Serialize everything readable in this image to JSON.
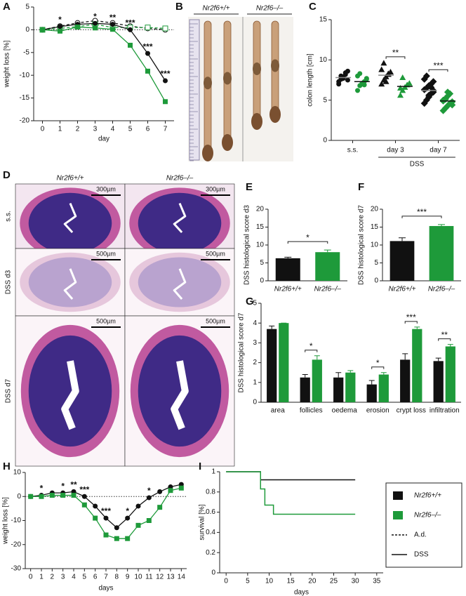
{
  "chart_data": [
    {
      "panel": "A",
      "type": "line",
      "x_label": "day",
      "y_label": "weight loss [%]",
      "x": [
        0,
        1,
        2,
        3,
        4,
        5,
        6,
        7
      ],
      "xlim": [
        -0.5,
        7.5
      ],
      "xticks": [
        0,
        1,
        2,
        3,
        4,
        5,
        6,
        7
      ],
      "ylim": [
        -20,
        5
      ],
      "yticks": [
        -20,
        -15,
        -10,
        -5,
        0,
        5
      ],
      "reference_line": 0,
      "series": [
        {
          "color": "#111111",
          "dashed": true,
          "marker": "circle",
          "values": [
            0,
            0.8,
            1.5,
            2,
            1.5,
            0.8,
            0.3,
            0
          ]
        },
        {
          "color": "#1e9a3a",
          "dashed": true,
          "marker": "square",
          "values": [
            0,
            0.3,
            0.7,
            1.2,
            0.5,
            0.5,
            0.5,
            0.3
          ]
        },
        {
          "color": "#111111",
          "dashed": false,
          "marker": "circle",
          "values": [
            0,
            0.7,
            1.2,
            1.4,
            1.2,
            0,
            -5.2,
            -11.2
          ]
        },
        {
          "color": "#1e9a3a",
          "dashed": false,
          "marker": "square",
          "values": [
            0,
            -0.3,
            0.6,
            0.4,
            0.1,
            -3.4,
            -9.1,
            -15.8
          ]
        }
      ],
      "annotations": [
        {
          "x": 1,
          "text": "*"
        },
        {
          "x": 3,
          "text": "*"
        },
        {
          "x": 4,
          "text": "**"
        },
        {
          "x": 5,
          "text": "***"
        },
        {
          "x": 6,
          "text": "***"
        },
        {
          "x": 7,
          "text": "***"
        }
      ]
    },
    {
      "panel": "B",
      "type": "photo",
      "labels": [
        "Nr2f6+/+",
        "Nr2f6–/–"
      ]
    },
    {
      "panel": "C",
      "type": "dot",
      "y_label": "colon length [cm]",
      "categories": [
        "s.s.",
        "day 3",
        "day 7"
      ],
      "group_label": "DSS",
      "ylim": [
        0,
        15
      ],
      "yticks": [
        0,
        5,
        10,
        15
      ],
      "markers": [
        "circle",
        "triangle",
        "diamond"
      ],
      "series": [
        {
          "color": "#111111",
          "means": [
            7.8,
            8.1,
            6.2
          ],
          "points": [
            [
              7.3,
              7.6,
              7.9,
              8.2,
              8.6,
              7.0,
              8.0,
              7.7,
              8.4,
              7.5
            ],
            [
              7.0,
              7.5,
              7.9,
              8.2,
              8.5,
              8.8,
              9.6,
              7.3,
              8.3
            ],
            [
              4.6,
              5.0,
              5.4,
              5.8,
              6.0,
              6.3,
              6.5,
              6.8,
              7.0,
              7.3,
              7.6,
              8.0,
              5.6,
              6.6,
              6.2
            ]
          ]
        },
        {
          "color": "#1e9a3a",
          "means": [
            7.3,
            6.7,
            4.9
          ],
          "points": [
            [
              6.2,
              6.8,
              7.0,
              7.3,
              7.6,
              8.0,
              8.3,
              7.1,
              6.9,
              7.7
            ],
            [
              5.6,
              6.2,
              6.6,
              6.9,
              7.1,
              6.5,
              7.8
            ],
            [
              3.7,
              4.0,
              4.3,
              4.6,
              4.8,
              5.0,
              5.2,
              5.5,
              5.8,
              4.4,
              4.9,
              5.1,
              6.0
            ]
          ]
        }
      ],
      "significance": [
        null,
        "**",
        "***"
      ]
    },
    {
      "panel": "D",
      "type": "histology",
      "columns": [
        "Nr2f6+/+",
        "Nr2f6–/–"
      ],
      "rows": [
        "s.s.",
        "DSS d3",
        "DSS d7"
      ],
      "scale_bars": [
        "300µm",
        "300µm",
        "500µm",
        "500µm",
        "500µm",
        "500µm"
      ]
    },
    {
      "panel": "E",
      "type": "bar",
      "y_label": "DSS histological score d3",
      "categories": [
        "Nr2f6+/+",
        "Nr2f6–/–"
      ],
      "colors": [
        "#111111",
        "#1e9a3a"
      ],
      "values": [
        6.3,
        8.0
      ],
      "errors": [
        0.3,
        0.6
      ],
      "ylim": [
        0,
        20
      ],
      "yticks": [
        0,
        5,
        10,
        15,
        20
      ],
      "significance": "*"
    },
    {
      "panel": "F",
      "type": "bar",
      "y_label": "DSS histological score d7",
      "categories": [
        "Nr2f6+/+",
        "Nr2f6–/–"
      ],
      "colors": [
        "#111111",
        "#1e9a3a"
      ],
      "values": [
        11.1,
        15.3
      ],
      "errors": [
        0.9,
        0.4
      ],
      "ylim": [
        0,
        20
      ],
      "yticks": [
        0,
        5,
        10,
        15,
        20
      ],
      "significance": "***"
    },
    {
      "panel": "G",
      "type": "grouped_bar",
      "y_label": "DSS histological score d7",
      "categories": [
        "area",
        "follicles",
        "oedema",
        "erosion",
        "crypt loss",
        "infiltration"
      ],
      "ylim": [
        0,
        5
      ],
      "yticks": [
        0,
        1,
        2,
        3,
        4,
        5
      ],
      "series": [
        {
          "color": "#111111",
          "values": [
            3.7,
            1.25,
            1.25,
            0.9,
            2.15,
            2.08
          ],
          "errors": [
            0.15,
            0.15,
            0.25,
            0.2,
            0.3,
            0.15
          ]
        },
        {
          "color": "#1e9a3a",
          "values": [
            4.0,
            2.15,
            1.5,
            1.4,
            3.7,
            2.82
          ],
          "errors": [
            0,
            0.2,
            0.1,
            0.1,
            0.1,
            0.1
          ]
        }
      ],
      "significance": [
        null,
        "*",
        null,
        "*",
        "***",
        "**"
      ]
    },
    {
      "panel": "H",
      "type": "line",
      "x_label": "days",
      "y_label": "weight loss [%]",
      "x": [
        0,
        1,
        2,
        3,
        4,
        5,
        6,
        7,
        8,
        9,
        10,
        11,
        12,
        13,
        14
      ],
      "xlim": [
        -0.5,
        14.5
      ],
      "xticks": [
        0,
        1,
        2,
        3,
        4,
        5,
        6,
        7,
        8,
        9,
        10,
        11,
        12,
        13,
        14
      ],
      "ylim": [
        -30,
        10
      ],
      "yticks": [
        -30,
        -20,
        -10,
        0,
        10
      ],
      "reference_line": 0,
      "series": [
        {
          "color": "#111111",
          "dashed": false,
          "marker": "circle",
          "values": [
            0,
            0.5,
            1.5,
            1.5,
            2,
            0,
            -4,
            -9,
            -13,
            -9,
            -4,
            -0.5,
            2,
            4,
            5
          ]
        },
        {
          "color": "#1e9a3a",
          "dashed": false,
          "marker": "square",
          "values": [
            0,
            0,
            0.5,
            0.5,
            0.5,
            -3.5,
            -9,
            -16,
            -17.5,
            -17.5,
            -12,
            -10,
            -4.5,
            2.5,
            3.5
          ]
        }
      ],
      "annotations": [
        {
          "x": 1,
          "text": "*"
        },
        {
          "x": 3,
          "text": "*"
        },
        {
          "x": 4,
          "text": "**"
        },
        {
          "x": 5,
          "text": "***"
        },
        {
          "x": 7,
          "text": "***"
        },
        {
          "x": 9,
          "text": "*"
        },
        {
          "x": 11,
          "text": "*"
        }
      ]
    },
    {
      "panel": "I",
      "type": "survival",
      "x_label": "days",
      "y_label": "survival [%]",
      "xlim": [
        -1.5,
        36.5
      ],
      "xticks": [
        0,
        5,
        10,
        15,
        20,
        25,
        30,
        35
      ],
      "ylim": [
        0,
        1
      ],
      "yticks": [
        0,
        0.2,
        0.4,
        0.6,
        0.8,
        1
      ],
      "series": [
        {
          "color": "#111111",
          "x": [
            0,
            8,
            30
          ],
          "values": [
            1,
            0.92,
            0.92
          ]
        },
        {
          "color": "#1e9a3a",
          "x": [
            0,
            8,
            9,
            11,
            30
          ],
          "values": [
            1,
            0.83,
            0.67,
            0.58,
            0.58
          ]
        }
      ],
      "legend": [
        {
          "label": "Nr2f6+/+",
          "color": "#111111",
          "style": "box"
        },
        {
          "label": "Nr2f6–/–",
          "color": "#1e9a3a",
          "style": "box"
        },
        {
          "label": "A.d.",
          "color": "#111111",
          "style": "dashed"
        },
        {
          "label": "DSS",
          "color": "#111111",
          "style": "solid"
        }
      ]
    }
  ]
}
